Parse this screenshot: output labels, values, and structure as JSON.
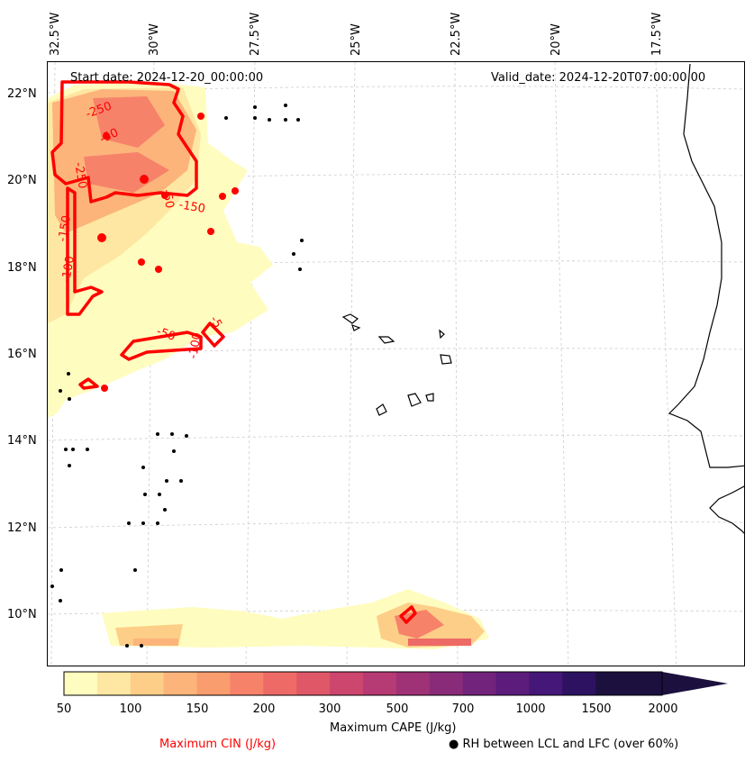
{
  "map": {
    "start_date": "Start date: 2024-12-20_00:00:00",
    "valid_date": "Valid_date: 2024-12-20T07:00:00.00",
    "lon_labels": [
      "32.5°W",
      "30°W",
      "27.5°W",
      "25°W",
      "22.5°W",
      "20°W",
      "17.5°W"
    ],
    "lat_labels": [
      "22°N",
      "20°N",
      "18°N",
      "16°N",
      "14°N",
      "12°N",
      "10°N"
    ],
    "cin_contour_labels": [
      "-250",
      "-50",
      "-50",
      "-250",
      "-150",
      "-100",
      "-150",
      "-50",
      "-100",
      "-5"
    ]
  },
  "colorbar": {
    "ticks": [
      "50",
      "100",
      "150",
      "200",
      "300",
      "500",
      "700",
      "1000",
      "1500",
      "2000"
    ],
    "colors": [
      "#fffcbf",
      "#fee7a2",
      "#fdce88",
      "#fcb47a",
      "#f99c6e",
      "#f6826a",
      "#ee6a66",
      "#e05768",
      "#cc466e",
      "#b63a73",
      "#9f3176",
      "#892b79",
      "#72237b",
      "#5c1c7b",
      "#451778",
      "#2d1262",
      "#1c103f"
    ],
    "label": "Maximum CAPE (J/kg)"
  },
  "legend": {
    "cin": "Maximum CIN (J/kg)",
    "cin_color": "#ff0000",
    "rh": "● RH between LCL and LFC (over 60%)"
  }
}
